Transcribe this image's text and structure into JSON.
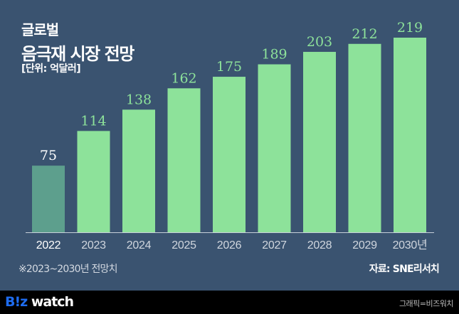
{
  "title_line1": "글로벌",
  "title_line2": "음극재 시장 전망",
  "unit": "[단위: 억달러]",
  "note": "※2023~2030년 전망치",
  "source": "자료: SNE리서치",
  "logo": {
    "part1": "B!z",
    "part2": " watch"
  },
  "credit": "그래픽=비즈워치",
  "colors": {
    "background": "#3a5370",
    "bar": "#8de29a",
    "bar_actual": "#5d9f8d",
    "label_forecast": "#8de29a",
    "label_actual": "#ffffff"
  },
  "chart_data": {
    "type": "bar",
    "title": "글로벌 음극재 시장 전망",
    "ylabel": "억달러",
    "categories": [
      "2022",
      "2023",
      "2024",
      "2025",
      "2026",
      "2027",
      "2028",
      "2029",
      "2030년"
    ],
    "values": [
      75,
      114,
      138,
      162,
      175,
      189,
      203,
      212,
      219
    ],
    "forecast_from_index": 1,
    "ylim": [
      0,
      219
    ],
    "grid": false
  }
}
